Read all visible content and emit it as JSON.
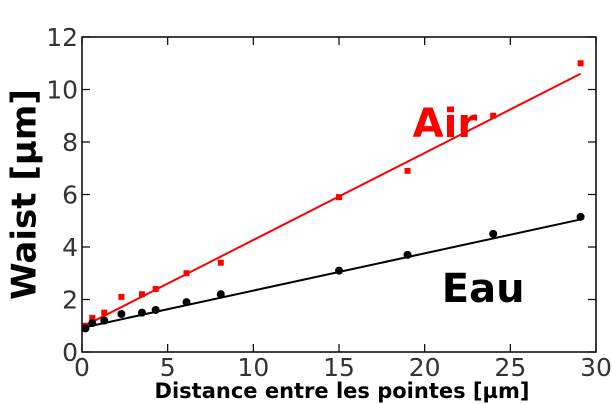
{
  "chart_data": {
    "type": "scatter",
    "xlabel": "Distance entre les pointes [µm]",
    "ylabel": "Waist [µm]",
    "xlim": [
      0,
      30
    ],
    "ylim": [
      0,
      12
    ],
    "x_ticks": [
      0,
      5,
      10,
      15,
      20,
      25,
      30
    ],
    "y_ticks": [
      0,
      2,
      4,
      6,
      8,
      10,
      12
    ],
    "grid": false,
    "series": [
      {
        "name": "Air",
        "color": "#ff0000",
        "marker": "square",
        "x": [
          0.2,
          0.6,
          1.3,
          2.3,
          3.5,
          4.3,
          6.1,
          8.1,
          15.0,
          19.0,
          24.0,
          29.1
        ],
        "y": [
          1.0,
          1.3,
          1.5,
          2.1,
          2.2,
          2.4,
          3.0,
          3.4,
          5.9,
          6.9,
          9.0,
          11.0
        ],
        "fit": {
          "x": [
            0,
            29.1
          ],
          "y": [
            0.95,
            10.6
          ]
        }
      },
      {
        "name": "Eau",
        "color": "#000000",
        "marker": "circle",
        "x": [
          0.2,
          0.6,
          1.3,
          2.3,
          3.5,
          4.3,
          6.1,
          8.1,
          15.0,
          19.0,
          24.0,
          29.1
        ],
        "y": [
          0.9,
          1.1,
          1.2,
          1.45,
          1.5,
          1.6,
          1.9,
          2.2,
          3.1,
          3.7,
          4.5,
          5.15
        ],
        "fit": {
          "x": [
            0,
            29.1
          ],
          "y": [
            0.92,
            5.05
          ]
        }
      }
    ],
    "annotations": [
      {
        "text": "Air",
        "x": 19.3,
        "y": 8.2,
        "color": "#ff0000"
      },
      {
        "text": "Eau",
        "x": 21.0,
        "y": 1.9,
        "color": "#000000"
      }
    ]
  }
}
